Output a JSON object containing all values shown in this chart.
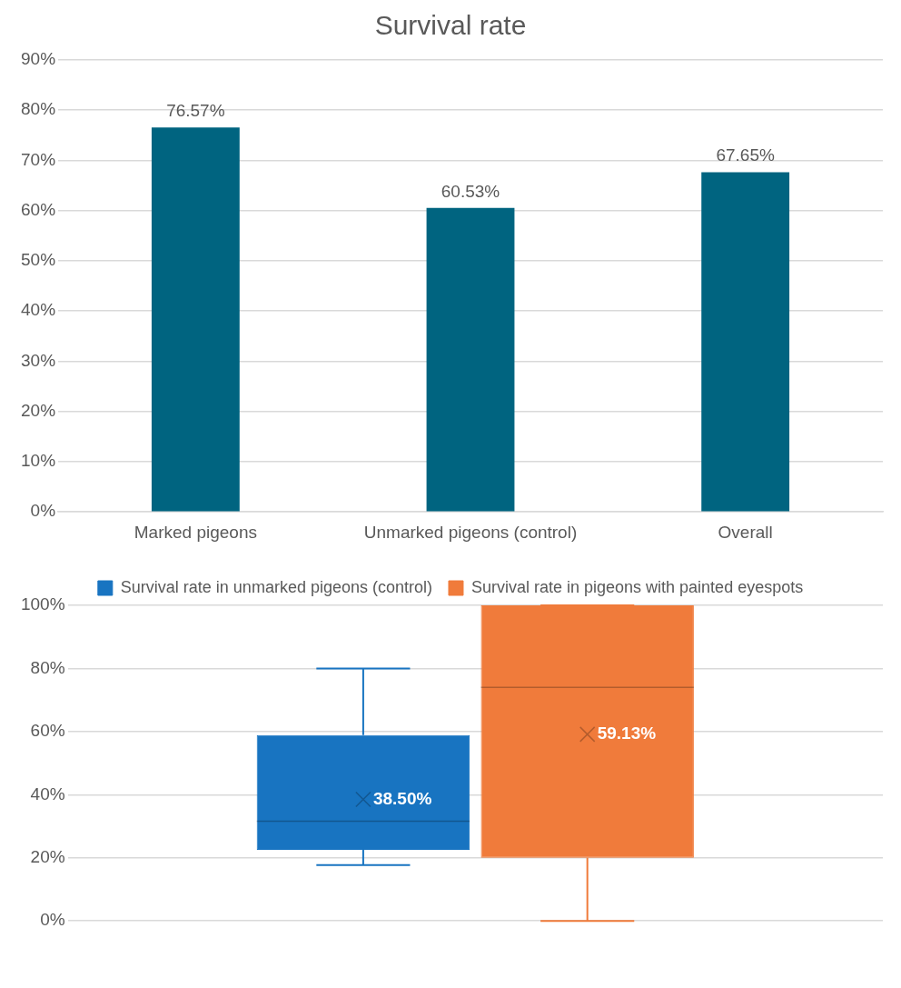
{
  "chart_data": [
    {
      "type": "bar",
      "title": "Survival rate",
      "categories": [
        "Marked pigeons",
        "Unmarked pigeons (control)",
        "Overall"
      ],
      "values": [
        76.57,
        60.53,
        67.65
      ],
      "color": "#006480",
      "data_labels": true,
      "value_labels": [
        "76.57%",
        "60.53%",
        "67.65%"
      ],
      "ylim": [
        0,
        90
      ],
      "yticks": [
        {
          "value": 0,
          "label": "0%"
        },
        {
          "value": 10,
          "label": "10%"
        },
        {
          "value": 20,
          "label": "20%"
        },
        {
          "value": 30,
          "label": "30%"
        },
        {
          "value": 40,
          "label": "40%"
        },
        {
          "value": 50,
          "label": "50%"
        },
        {
          "value": 60,
          "label": "60%"
        },
        {
          "value": 70,
          "label": "70%"
        },
        {
          "value": 80,
          "label": "80%"
        },
        {
          "value": 90,
          "label": "90%"
        }
      ],
      "grid": "y",
      "legend": false
    },
    {
      "type": "box",
      "categories": [
        null
      ],
      "legend": "top",
      "grid": "y",
      "ylim": [
        0,
        100
      ],
      "yticks": [
        {
          "value": 0,
          "label": "0%"
        },
        {
          "value": 20,
          "label": "20%"
        },
        {
          "value": 40,
          "label": "40%"
        },
        {
          "value": 60,
          "label": "60%"
        },
        {
          "value": 80,
          "label": "80%"
        },
        {
          "value": 100,
          "label": "100%"
        }
      ],
      "series": [
        {
          "name": "Survival rate in unmarked pigeons (control)",
          "color": "#1874c1",
          "boxes": [
            {
              "low": 17.7,
              "q1": 22.5,
              "median": 31.6,
              "q3": 58.9,
              "high": 80,
              "mean": 38.5
            }
          ],
          "value_labels": [
            "38.50%"
          ]
        },
        {
          "name": "Survival rate in pigeons with painted eyespots",
          "color": "#f07b3b",
          "boxes": [
            {
              "low": 0,
              "q1": 20,
              "median": 74,
              "q3": 100,
              "high": 100,
              "mean": 59.13
            }
          ],
          "value_labels": [
            "59.13%"
          ]
        }
      ]
    }
  ]
}
